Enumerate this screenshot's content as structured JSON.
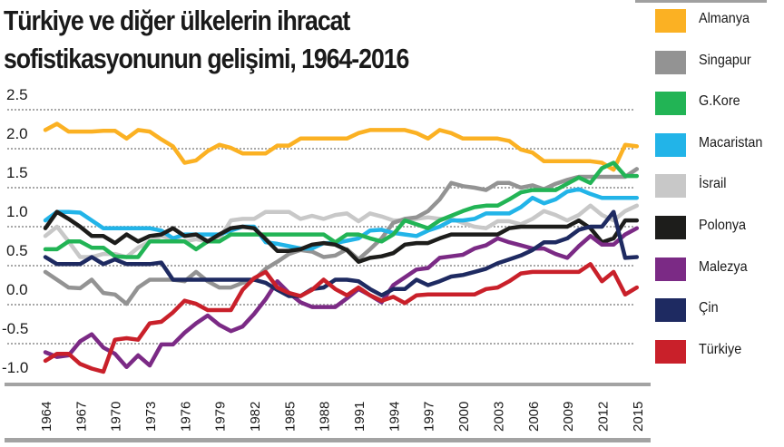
{
  "title_lines": [
    "Türkiye ve diğer ülkelerin ihracat",
    "sofistikasyonunun gelişimi, 1964-2016"
  ],
  "chart_data": {
    "type": "line",
    "title": "Türkiye ve diğer ülkelerin ihracat sofistikasyonunun gelişimi, 1964-2016",
    "xlabel": "",
    "ylabel": "",
    "ylim": [
      -1.0,
      2.5
    ],
    "xlim": [
      1964,
      2015
    ],
    "grid": true,
    "legend_position": "right",
    "y_ticks": [
      "2.5",
      "2.0",
      "1.5",
      "1.0",
      "0.5",
      "0.0",
      "-0.5",
      "-1.0"
    ],
    "y_tick_values": [
      2.5,
      2.0,
      1.5,
      1.0,
      0.5,
      0.0,
      -0.5,
      -1.0
    ],
    "x_ticks": [
      "1964",
      "1967",
      "1970",
      "1973",
      "1976",
      "1979",
      "1982",
      "1985",
      "1988",
      "1991",
      "1994",
      "1997",
      "2000",
      "2003",
      "2006",
      "2009",
      "2012",
      "2015"
    ],
    "x_start_year": 1964,
    "series": [
      {
        "name": "İsrail",
        "color": "#c8c8c8",
        "values": [
          0.88,
          1.0,
          0.81,
          0.61,
          0.61,
          0.65,
          0.65,
          0.61,
          0.73,
          0.81,
          0.88,
          0.84,
          0.81,
          0.84,
          0.81,
          0.84,
          1.08,
          1.1,
          1.1,
          1.19,
          1.19,
          1.19,
          1.1,
          1.14,
          1.1,
          1.15,
          1.17,
          1.07,
          1.17,
          1.13,
          1.08,
          1.08,
          1.1,
          1.12,
          1.1,
          1.1,
          1.05,
          1.0,
          0.98,
          1.07,
          1.07,
          1.03,
          1.1,
          1.2,
          1.15,
          1.08,
          1.15,
          1.27,
          1.15,
          1.08,
          1.2,
          1.27
        ]
      },
      {
        "name": "Singapur",
        "color": "#939393",
        "values": [
          0.42,
          0.32,
          0.22,
          0.21,
          0.32,
          0.15,
          0.13,
          0.01,
          0.22,
          0.32,
          0.32,
          0.32,
          0.3,
          0.42,
          0.3,
          0.22,
          0.22,
          0.28,
          0.32,
          0.46,
          0.55,
          0.65,
          0.7,
          0.68,
          0.61,
          0.63,
          0.71,
          0.58,
          0.71,
          0.85,
          1.05,
          1.1,
          1.12,
          1.2,
          1.35,
          1.56,
          1.52,
          1.5,
          1.47,
          1.56,
          1.56,
          1.5,
          1.53,
          1.48,
          1.55,
          1.6,
          1.64,
          1.64,
          1.64,
          1.64,
          1.64,
          1.74
        ]
      },
      {
        "name": "Macaristan",
        "color": "#22b4e8",
        "values": [
          1.08,
          1.19,
          1.19,
          1.18,
          1.08,
          0.98,
          0.98,
          0.98,
          0.98,
          0.98,
          0.95,
          0.85,
          0.9,
          0.9,
          0.9,
          0.9,
          0.95,
          1.0,
          1.0,
          0.8,
          0.78,
          0.75,
          0.72,
          0.72,
          0.79,
          0.79,
          0.82,
          0.85,
          0.95,
          0.96,
          0.92,
          0.9,
          0.88,
          0.95,
          1.0,
          1.08,
          1.08,
          1.1,
          1.17,
          1.17,
          1.17,
          1.25,
          1.37,
          1.3,
          1.35,
          1.45,
          1.48,
          1.42,
          1.37,
          1.37,
          1.37,
          1.37
        ]
      },
      {
        "name": "Almanya",
        "color": "#fbb123",
        "values": [
          2.24,
          2.32,
          2.22,
          2.22,
          2.22,
          2.23,
          2.23,
          2.13,
          2.24,
          2.22,
          2.12,
          2.03,
          1.82,
          1.85,
          1.97,
          2.05,
          2.01,
          1.94,
          1.94,
          1.94,
          2.04,
          2.04,
          2.13,
          2.13,
          2.13,
          2.13,
          2.13,
          2.2,
          2.24,
          2.24,
          2.24,
          2.24,
          2.2,
          2.13,
          2.24,
          2.2,
          2.13,
          2.13,
          2.13,
          2.13,
          2.1,
          1.99,
          1.95,
          1.84,
          1.84,
          1.84,
          1.84,
          1.84,
          1.82,
          1.73,
          2.05,
          2.03
        ]
      },
      {
        "name": "G.Kore",
        "color": "#22b455",
        "values": [
          0.71,
          0.71,
          0.81,
          0.81,
          0.73,
          0.73,
          0.62,
          0.61,
          0.61,
          0.81,
          0.81,
          0.81,
          0.81,
          0.71,
          0.81,
          0.81,
          0.9,
          0.9,
          0.9,
          0.9,
          0.9,
          0.9,
          0.9,
          0.9,
          0.9,
          0.8,
          0.9,
          0.9,
          0.85,
          0.81,
          0.9,
          1.08,
          1.03,
          0.98,
          1.08,
          1.14,
          1.2,
          1.25,
          1.27,
          1.27,
          1.35,
          1.44,
          1.47,
          1.47,
          1.47,
          1.55,
          1.63,
          1.56,
          1.75,
          1.82,
          1.65,
          1.65
        ]
      },
      {
        "name": "Polonya",
        "color": "#1d1d1b",
        "values": [
          0.98,
          1.19,
          1.1,
          1.0,
          0.88,
          0.88,
          0.79,
          0.9,
          0.81,
          0.88,
          0.9,
          0.98,
          0.88,
          0.9,
          0.81,
          0.9,
          0.98,
          1.0,
          0.98,
          0.84,
          0.69,
          0.69,
          0.71,
          0.77,
          0.79,
          0.77,
          0.7,
          0.55,
          0.6,
          0.62,
          0.66,
          0.77,
          0.79,
          0.79,
          0.85,
          0.9,
          0.9,
          0.9,
          0.9,
          0.9,
          0.98,
          1.0,
          1.0,
          1.0,
          1.0,
          1.0,
          1.08,
          0.98,
          0.8,
          0.85,
          1.08,
          1.08
        ]
      },
      {
        "name": "Malezya",
        "color": "#7b2a85",
        "values": [
          -0.61,
          -0.67,
          -0.65,
          -0.47,
          -0.38,
          -0.55,
          -0.63,
          -0.8,
          -0.65,
          -0.78,
          -0.51,
          -0.51,
          -0.36,
          -0.24,
          -0.14,
          -0.26,
          -0.34,
          -0.28,
          -0.12,
          0.07,
          0.3,
          0.15,
          0.03,
          -0.03,
          -0.03,
          -0.03,
          0.08,
          0.2,
          0.12,
          0.03,
          0.25,
          0.35,
          0.45,
          0.47,
          0.6,
          0.62,
          0.64,
          0.72,
          0.76,
          0.85,
          0.8,
          0.76,
          0.72,
          0.72,
          0.65,
          0.6,
          0.75,
          0.88,
          0.77,
          0.77,
          0.9,
          0.98
        ]
      },
      {
        "name": "Çin",
        "color": "#1e2a61",
        "values": [
          0.61,
          0.52,
          0.52,
          0.52,
          0.61,
          0.52,
          0.58,
          0.52,
          0.52,
          0.52,
          0.54,
          0.32,
          0.32,
          0.32,
          0.32,
          0.32,
          0.32,
          0.32,
          0.32,
          0.28,
          0.19,
          0.11,
          0.11,
          0.2,
          0.22,
          0.32,
          0.32,
          0.3,
          0.2,
          0.12,
          0.2,
          0.2,
          0.32,
          0.25,
          0.3,
          0.36,
          0.38,
          0.42,
          0.46,
          0.53,
          0.58,
          0.63,
          0.7,
          0.8,
          0.8,
          0.85,
          0.96,
          1.0,
          1.0,
          1.19,
          0.6,
          0.61
        ]
      },
      {
        "name": "Türkiye",
        "color": "#c9202a",
        "values": [
          -0.72,
          -0.63,
          -0.63,
          -0.76,
          -0.82,
          -0.86,
          -0.45,
          -0.43,
          -0.45,
          -0.24,
          -0.22,
          -0.1,
          0.05,
          0.01,
          -0.07,
          -0.07,
          -0.07,
          0.19,
          0.34,
          0.42,
          0.22,
          0.15,
          0.11,
          0.19,
          0.32,
          0.2,
          0.12,
          0.22,
          0.12,
          0.05,
          0.1,
          0.02,
          0.12,
          0.13,
          0.13,
          0.13,
          0.13,
          0.13,
          0.2,
          0.22,
          0.3,
          0.4,
          0.42,
          0.42,
          0.42,
          0.42,
          0.42,
          0.52,
          0.3,
          0.42,
          0.13,
          0.22
        ]
      }
    ]
  },
  "legend": [
    {
      "label": "Almanya",
      "color": "#fbb123"
    },
    {
      "label": "Singapur",
      "color": "#939393"
    },
    {
      "label": "G.Kore",
      "color": "#22b455"
    },
    {
      "label": "Macaristan",
      "color": "#22b4e8"
    },
    {
      "label": "İsrail",
      "color": "#c8c8c8"
    },
    {
      "label": "Polonya",
      "color": "#1d1d1b"
    },
    {
      "label": "Malezya",
      "color": "#7b2a85"
    },
    {
      "label": "Çin",
      "color": "#1e2a61"
    },
    {
      "label": "Türkiye",
      "color": "#c9202a"
    }
  ]
}
